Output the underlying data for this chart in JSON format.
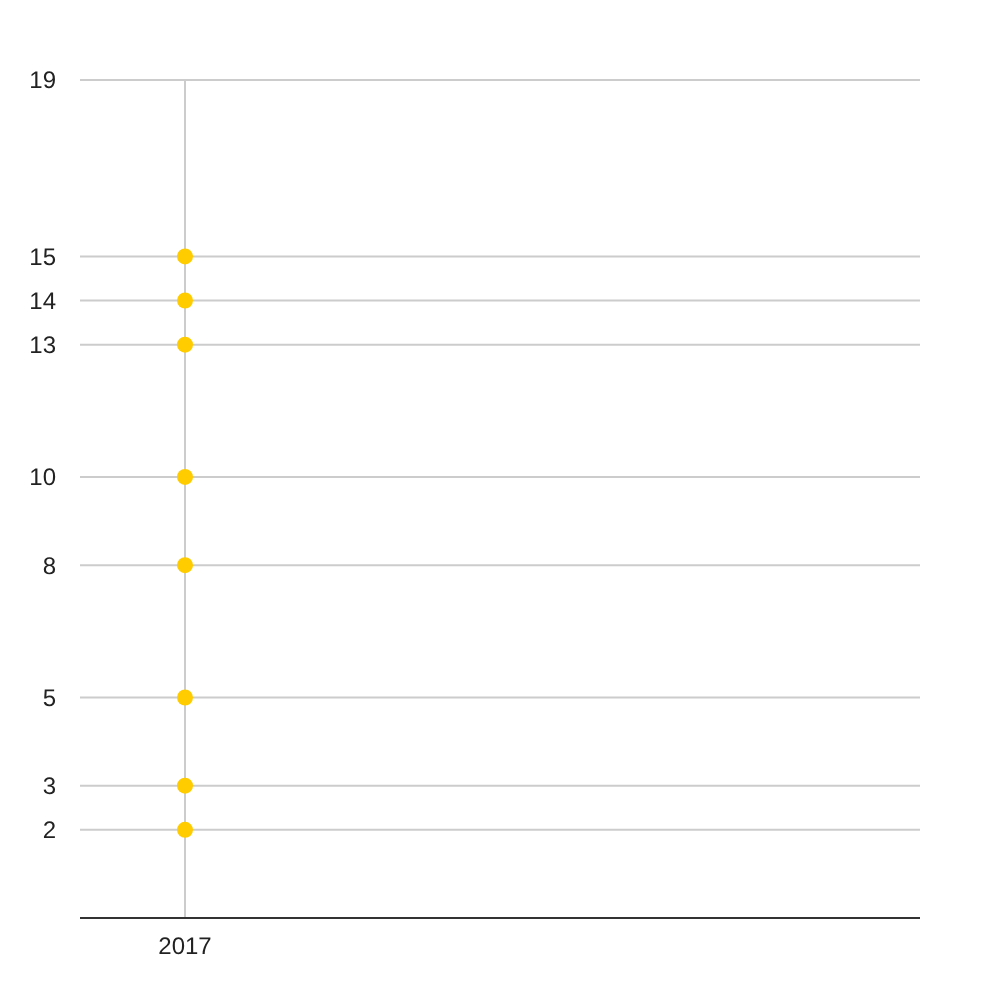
{
  "chart_data": {
    "type": "scatter",
    "categories": [
      "2017",
      null,
      null,
      null
    ],
    "series": [
      {
        "color": "#ffcc00",
        "values": [
          15,
          null,
          null,
          null
        ]
      },
      {
        "color": "#ffcc00",
        "values": [
          14,
          null,
          null,
          null
        ]
      },
      {
        "color": "#ffcc00",
        "values": [
          13,
          null,
          null,
          null
        ]
      },
      {
        "color": "#ffcc00",
        "values": [
          10,
          null,
          null,
          null
        ]
      },
      {
        "color": "#ffcc00",
        "values": [
          8,
          null,
          null,
          null
        ]
      },
      {
        "color": "#ffcc00",
        "values": [
          5,
          null,
          null,
          null
        ]
      },
      {
        "color": "#ffcc00",
        "values": [
          3,
          null,
          null,
          null
        ]
      },
      {
        "color": "#ffcc00",
        "values": [
          2,
          null,
          null,
          null
        ]
      }
    ],
    "ylim": [
      0,
      19
    ],
    "yticks": [
      2,
      3,
      5,
      8,
      10,
      13,
      14,
      15,
      19
    ],
    "grid": true,
    "marker": "circle"
  }
}
